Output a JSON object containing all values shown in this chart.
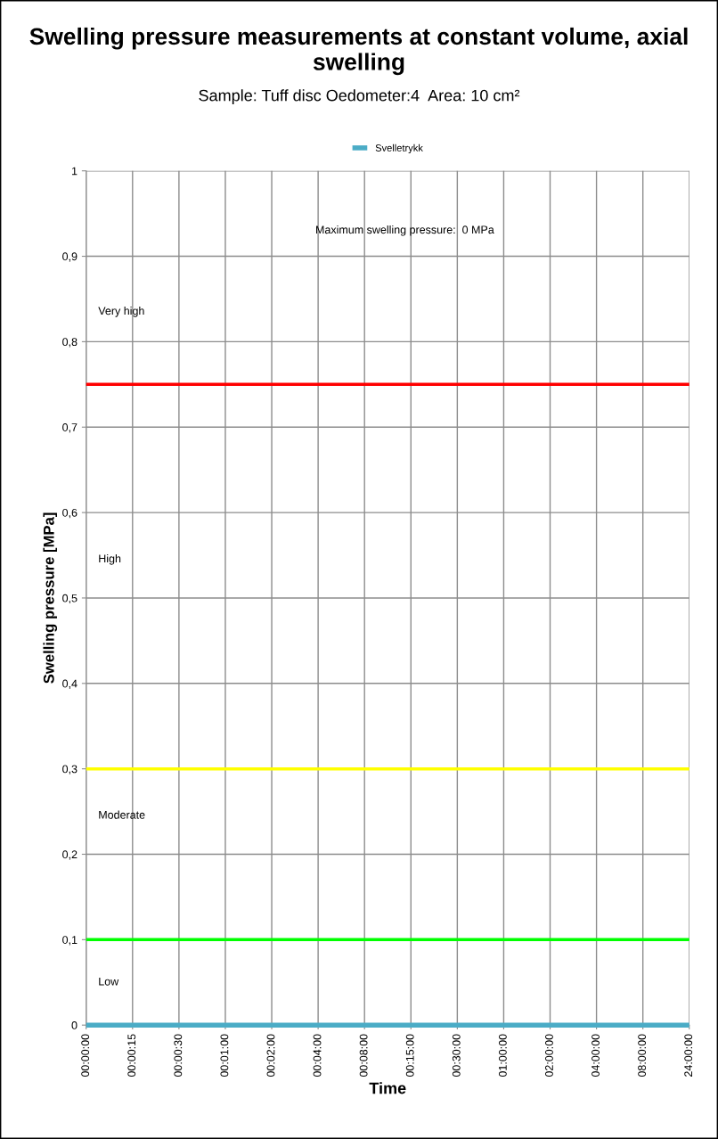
{
  "chart_data": {
    "type": "line",
    "title": "Swelling pressure measurements at constant volume, axial swelling",
    "subtitle": "Sample: Tuff disc Oedometer:4  Area: 10 cm²",
    "xlabel": "Time",
    "ylabel": "Swelling pressure [MPa]",
    "categories": [
      "00:00:00",
      "00:00:15",
      "00:00:30",
      "00:01:00",
      "00:02:00",
      "00:04:00",
      "00:08:00",
      "00:15:00",
      "00:30:00",
      "01:00:00",
      "02:00:00",
      "04:00:00",
      "08:00:00",
      "24:00:00"
    ],
    "series": [
      {
        "name": "Svelletrykk",
        "color": "#4bacc6",
        "values": [
          0,
          0,
          0,
          0,
          0,
          0,
          0,
          0,
          0,
          0,
          0,
          0,
          0,
          0
        ]
      }
    ],
    "ylim": [
      0,
      1
    ],
    "yticks": [
      {
        "value": 0,
        "label": "0"
      },
      {
        "value": 0.1,
        "label": "0,1"
      },
      {
        "value": 0.2,
        "label": "0,2"
      },
      {
        "value": 0.3,
        "label": "0,3"
      },
      {
        "value": 0.4,
        "label": "0,4"
      },
      {
        "value": 0.5,
        "label": "0,5"
      },
      {
        "value": 0.6,
        "label": "0,6"
      },
      {
        "value": 0.7,
        "label": "0,7"
      },
      {
        "value": 0.8,
        "label": "0,8"
      },
      {
        "value": 0.9,
        "label": "0,9"
      },
      {
        "value": 1,
        "label": "1"
      }
    ],
    "ref_lines": [
      {
        "axis": "y",
        "value": 0.75,
        "color": "#ff0000"
      },
      {
        "axis": "y",
        "value": 0.3,
        "color": "#ffff00"
      },
      {
        "axis": "y",
        "value": 0.1,
        "color": "#00ff00"
      }
    ],
    "annotations": [
      "Very high",
      "High",
      "Moderate",
      "Low",
      "Maximum swelling pressure:  0 MPa"
    ],
    "grid": true,
    "legend": "top",
    "marker": "none",
    "line_style": "solid"
  }
}
